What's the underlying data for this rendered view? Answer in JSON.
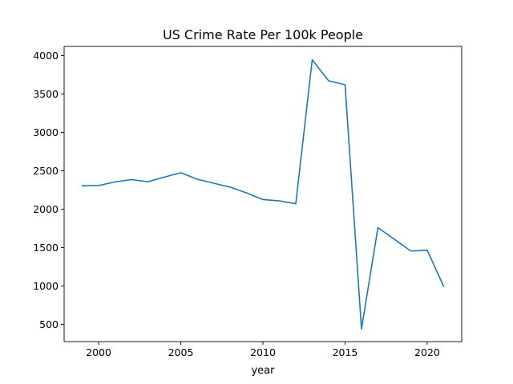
{
  "chart_data": {
    "type": "line",
    "title": "US Crime Rate Per 100k People",
    "xlabel": "year",
    "ylabel": "",
    "xlim": [
      1997.9,
      2022.1
    ],
    "ylim": [
      275,
      4120
    ],
    "x_ticks": [
      2000,
      2005,
      2010,
      2015,
      2020
    ],
    "y_ticks": [
      500,
      1000,
      1500,
      2000,
      2500,
      3000,
      3500,
      4000
    ],
    "grid": false,
    "series": [
      {
        "color": "#1f77b4",
        "x": [
          1999,
          2000,
          2001,
          2002,
          2003,
          2004,
          2005,
          2006,
          2007,
          2008,
          2009,
          2010,
          2011,
          2012,
          2013,
          2014,
          2015,
          2016,
          2017,
          2018,
          2019,
          2020,
          2021
        ],
        "y": [
          2305,
          2308,
          2355,
          2385,
          2357,
          2418,
          2475,
          2390,
          2338,
          2287,
          2212,
          2125,
          2108,
          2070,
          3945,
          3672,
          3620,
          440,
          1760,
          1608,
          1455,
          1465,
          995
        ]
      }
    ]
  }
}
